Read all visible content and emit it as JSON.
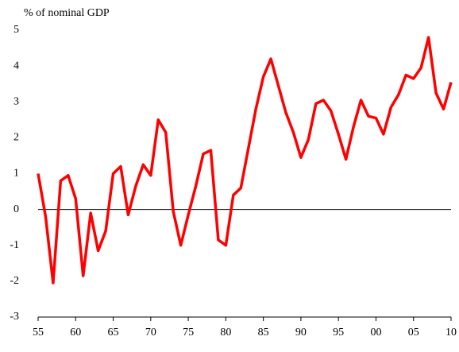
{
  "chart_data": {
    "type": "line",
    "title": "% of nominal GDP",
    "x": [
      1955,
      1956,
      1957,
      1958,
      1959,
      1960,
      1961,
      1962,
      1963,
      1964,
      1965,
      1966,
      1967,
      1968,
      1969,
      1970,
      1971,
      1972,
      1973,
      1974,
      1975,
      1976,
      1977,
      1978,
      1979,
      1980,
      1981,
      1982,
      1983,
      1984,
      1985,
      1986,
      1987,
      1988,
      1989,
      1990,
      1991,
      1992,
      1993,
      1994,
      1995,
      1996,
      1997,
      1998,
      1999,
      2000,
      2001,
      2002,
      2003,
      2004,
      2005,
      2006,
      2007,
      2008,
      2009,
      2010
    ],
    "series": [
      {
        "color": "#ff0000",
        "values": [
          1.0,
          -0.2,
          -2.05,
          0.8,
          0.95,
          0.3,
          -1.85,
          -0.1,
          -1.15,
          -0.6,
          1.0,
          1.2,
          -0.15,
          0.65,
          1.25,
          0.95,
          2.5,
          2.15,
          -0.05,
          -1.0,
          -0.15,
          0.65,
          1.55,
          1.65,
          -0.85,
          -1.0,
          0.4,
          0.6,
          1.7,
          2.8,
          3.7,
          4.2,
          3.45,
          2.7,
          2.15,
          1.45,
          1.95,
          2.95,
          3.05,
          2.75,
          2.1,
          1.4,
          2.3,
          3.05,
          2.6,
          2.55,
          2.1,
          2.85,
          3.2,
          3.75,
          3.65,
          3.95,
          4.8,
          3.25,
          2.8,
          3.55
        ]
      }
    ],
    "xlim": [
      1955,
      2010
    ],
    "xticks": [
      {
        "value": 1955,
        "label": "55"
      },
      {
        "value": 1960,
        "label": "60"
      },
      {
        "value": 1965,
        "label": "65"
      },
      {
        "value": 1970,
        "label": "70"
      },
      {
        "value": 1975,
        "label": "75"
      },
      {
        "value": 1980,
        "label": "80"
      },
      {
        "value": 1985,
        "label": "85"
      },
      {
        "value": 1990,
        "label": "90"
      },
      {
        "value": 1995,
        "label": "95"
      },
      {
        "value": 2000,
        "label": "00"
      },
      {
        "value": 2005,
        "label": "05"
      },
      {
        "value": 2010,
        "label": "10"
      }
    ],
    "ylim": [
      -3,
      5
    ],
    "yticks": [
      -3,
      -2,
      -1,
      0,
      1,
      2,
      3,
      4,
      5
    ]
  }
}
